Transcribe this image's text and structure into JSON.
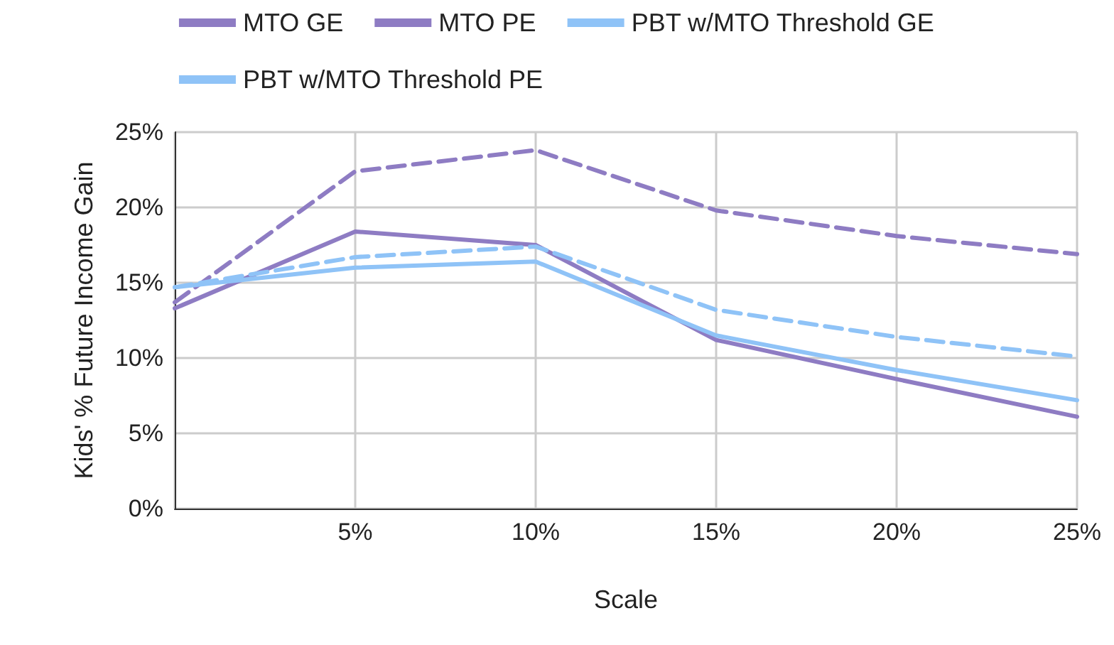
{
  "chart_data": {
    "type": "line",
    "xlabel": "Scale",
    "ylabel": "Kids' % Future Income Gain",
    "x": [
      0,
      5,
      10,
      15,
      20,
      25
    ],
    "xlim": [
      0,
      25
    ],
    "xticks": [
      {
        "value": 0,
        "label": null
      },
      {
        "value": 5,
        "label": "5%"
      },
      {
        "value": 10,
        "label": "10%"
      },
      {
        "value": 15,
        "label": "15%"
      },
      {
        "value": 20,
        "label": "20%"
      },
      {
        "value": 25,
        "label": "25%"
      }
    ],
    "ylim": [
      0,
      25
    ],
    "yticks": [
      {
        "value": 0,
        "label": "0%"
      },
      {
        "value": 5,
        "label": "5%"
      },
      {
        "value": 10,
        "label": "10%"
      },
      {
        "value": 15,
        "label": "15%"
      },
      {
        "value": 20,
        "label": "20%"
      },
      {
        "value": 25,
        "label": "25%"
      }
    ],
    "grid": true,
    "legend": "top",
    "marker": "none",
    "series": [
      {
        "name": "MTO GE",
        "color": "#8e7cc3",
        "line_style": "solid",
        "values": [
          13.3,
          18.4,
          17.5,
          11.2,
          8.6,
          6.1
        ]
      },
      {
        "name": "MTO PE",
        "color": "#8e7cc3",
        "line_style": "dashed",
        "values": [
          13.7,
          22.4,
          23.8,
          19.8,
          18.1,
          16.9
        ]
      },
      {
        "name": "PBT w/MTO Threshold GE",
        "color": "#8fc3f7",
        "line_style": "solid",
        "values": [
          14.7,
          16.0,
          16.4,
          11.5,
          9.2,
          7.2
        ]
      },
      {
        "name": "PBT w/MTO Threshold PE",
        "color": "#8fc3f7",
        "line_style": "dashed",
        "values": [
          14.7,
          16.7,
          17.4,
          13.2,
          11.4,
          10.1
        ]
      }
    ]
  }
}
